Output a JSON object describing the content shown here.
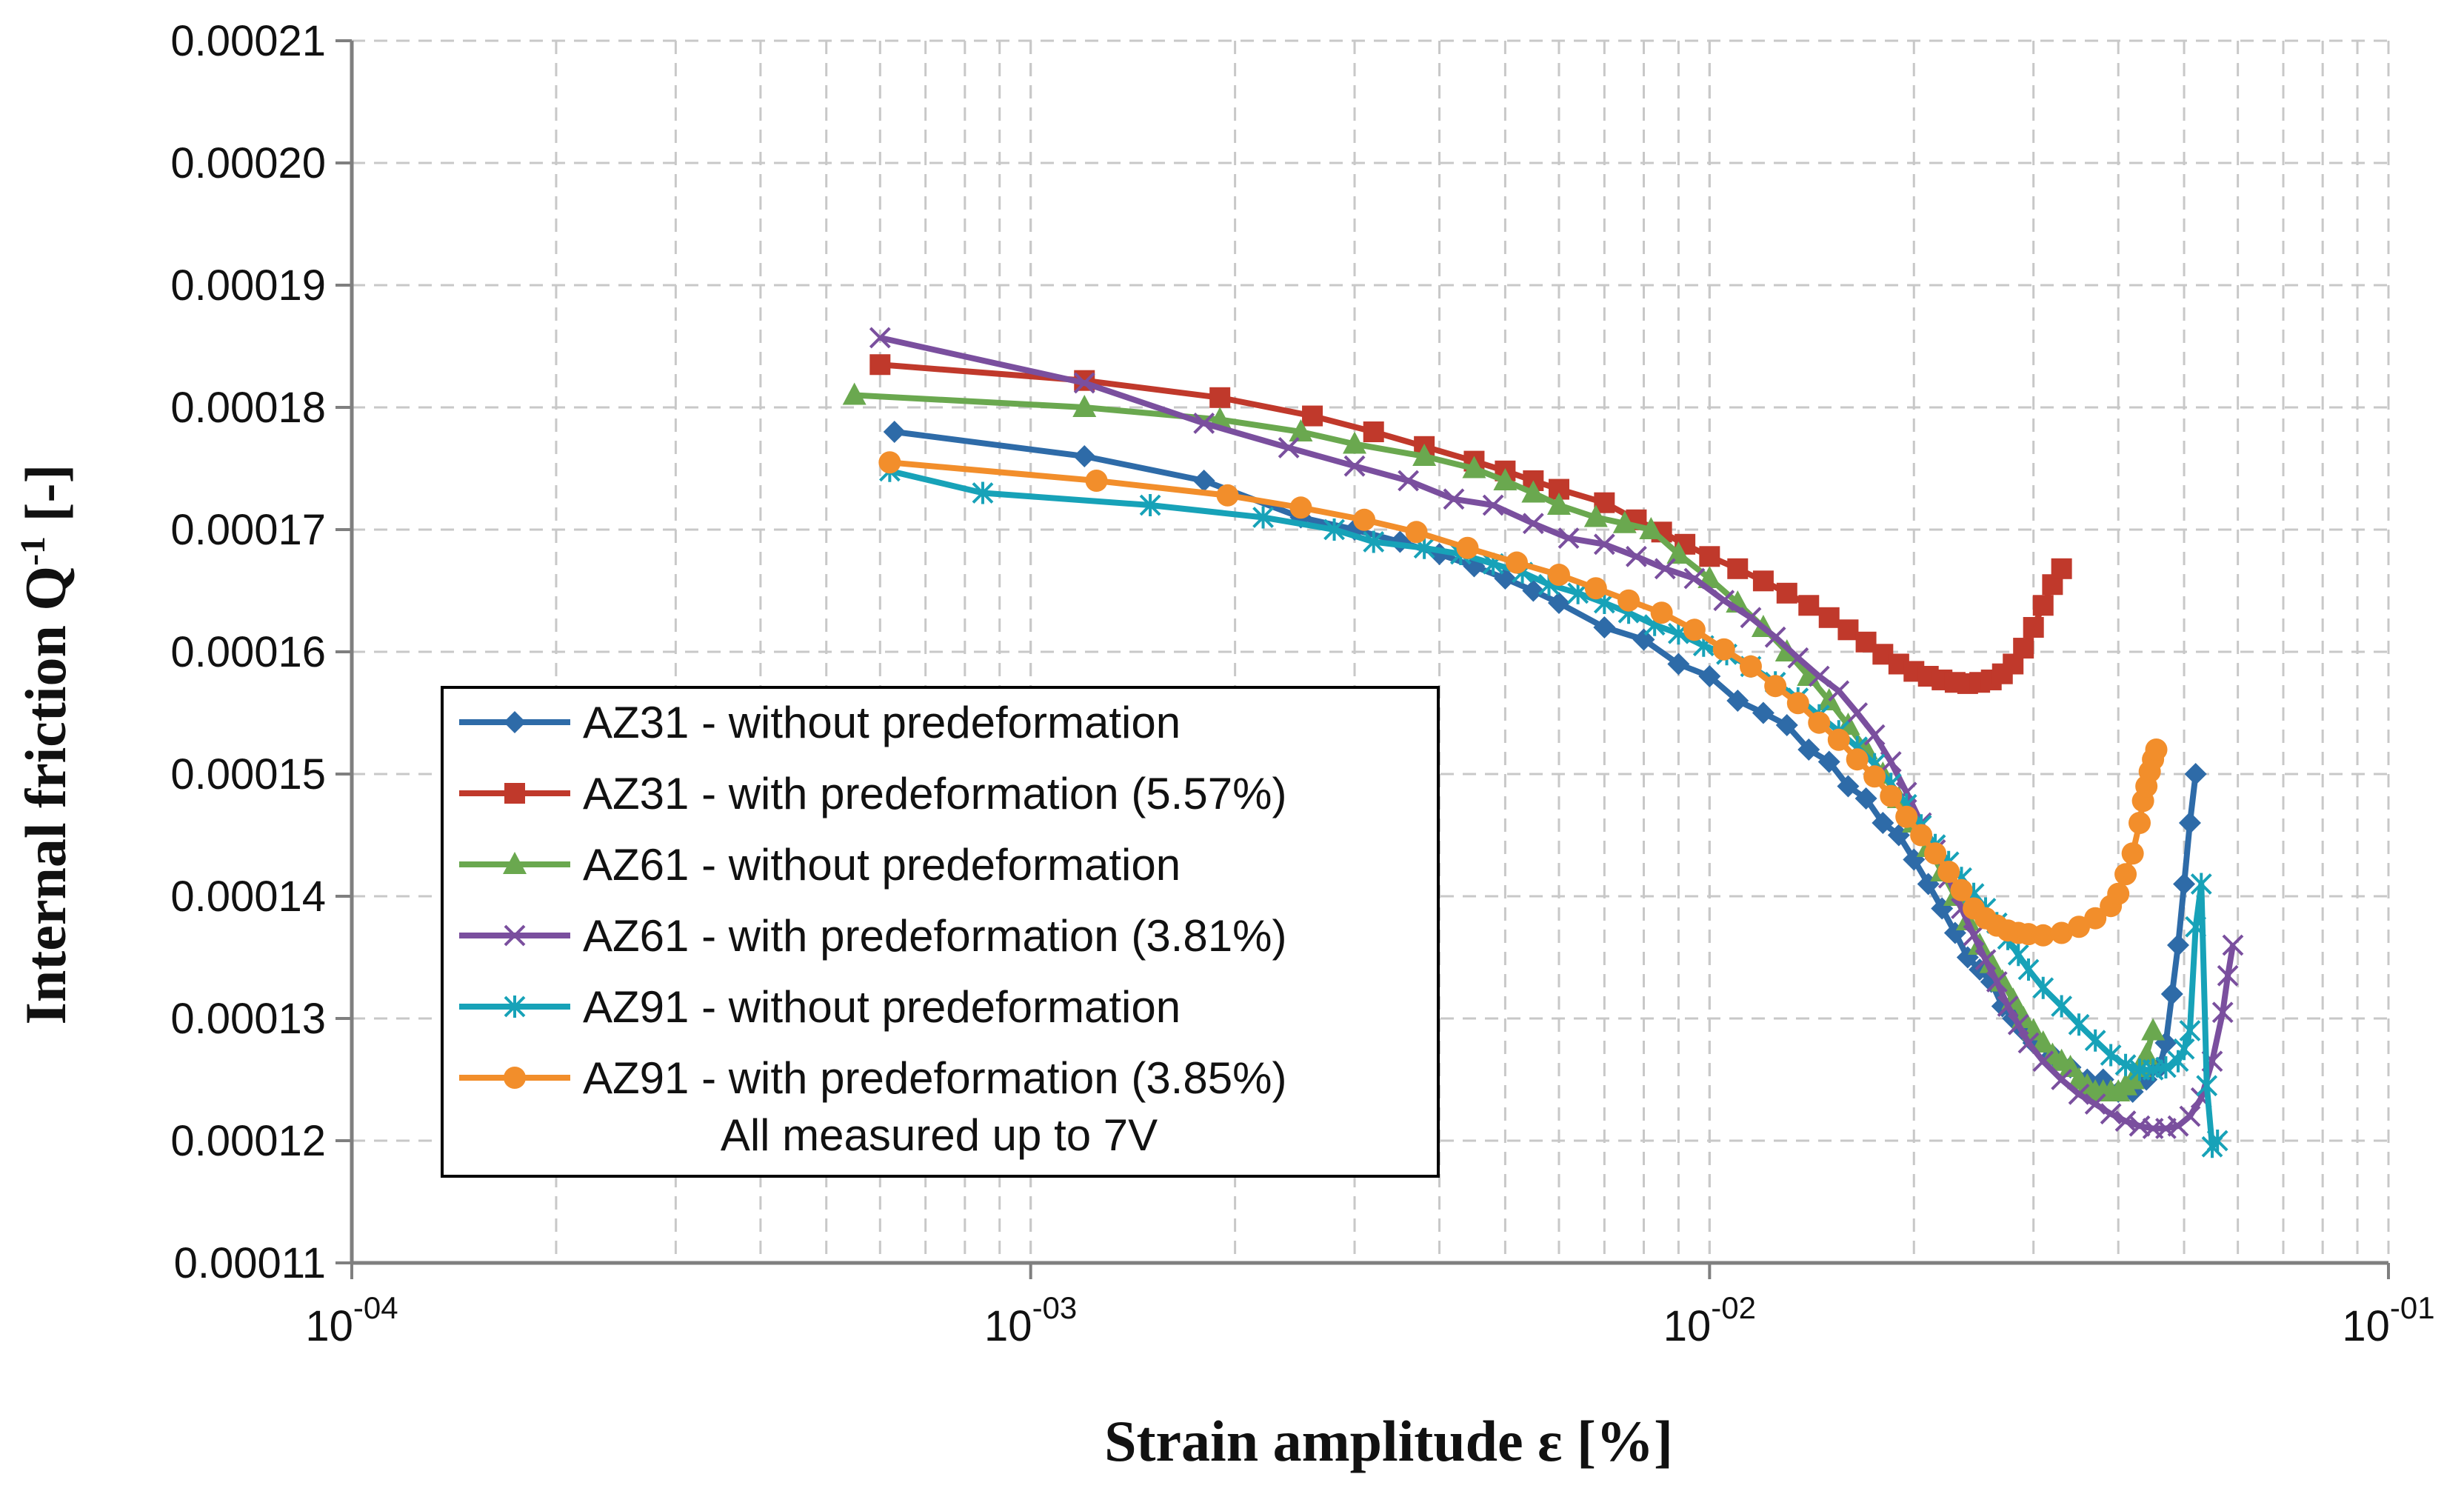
{
  "chart_data": {
    "type": "line",
    "title": "",
    "xlabel": "Strain amplitude ε [%]",
    "ylabel": "Internal friction Q",
    "ylabel_sup": "-1",
    "ylabel_unit": "[-]",
    "xscale": "log",
    "xlim": [
      0.0001,
      0.1
    ],
    "ylim": [
      0.00011,
      0.00021
    ],
    "grid": true,
    "legend_position": "lower-left",
    "x_ticks": [
      {
        "mant": "10",
        "exp": "-04"
      },
      {
        "mant": "10",
        "exp": "-03"
      },
      {
        "mant": "10",
        "exp": "-02"
      },
      {
        "mant": "10",
        "exp": "-01"
      }
    ],
    "y_ticks": [
      "0.00011",
      "0.00012",
      "0.00013",
      "0.00014",
      "0.00015",
      "0.00016",
      "0.00017",
      "0.00018",
      "0.00019",
      "0.00020",
      "0.00021"
    ],
    "series": [
      {
        "name": "AZ31 - without predeformation",
        "color": "#2e6ba8",
        "marker": "diamond",
        "x": [
          0.00063,
          0.0012,
          0.0018,
          0.0025,
          0.003,
          0.0035,
          0.004,
          0.0045,
          0.005,
          0.0055,
          0.006,
          0.007,
          0.008,
          0.009,
          0.01,
          0.011,
          0.012,
          0.013,
          0.014,
          0.015,
          0.016,
          0.017,
          0.018,
          0.019,
          0.02,
          0.021,
          0.022,
          0.023,
          0.024,
          0.025,
          0.026,
          0.027,
          0.028,
          0.029,
          0.03,
          0.032,
          0.034,
          0.036,
          0.038,
          0.04,
          0.042,
          0.044,
          0.046,
          0.047,
          0.048,
          0.049,
          0.05,
          0.051,
          0.052
        ],
        "y": [
          0.000178,
          0.000176,
          0.000174,
          0.000171,
          0.00017,
          0.000169,
          0.000168,
          0.000167,
          0.000166,
          0.000165,
          0.000164,
          0.000162,
          0.000161,
          0.000159,
          0.000158,
          0.000156,
          0.000155,
          0.000154,
          0.000152,
          0.000151,
          0.000149,
          0.000148,
          0.000146,
          0.000145,
          0.000143,
          0.000141,
          0.000139,
          0.000137,
          0.000135,
          0.000134,
          0.000133,
          0.000131,
          0.00013,
          0.000129,
          0.000128,
          0.000127,
          0.000126,
          0.000125,
          0.000125,
          0.000124,
          0.000124,
          0.000125,
          0.000126,
          0.000128,
          0.000132,
          0.000136,
          0.000141,
          0.000146,
          0.00015
        ]
      },
      {
        "name": "AZ31 - with predeformation (5.57%)",
        "color": "#c0392b",
        "marker": "square",
        "x": [
          0.0006,
          0.0012,
          0.0019,
          0.0026,
          0.0032,
          0.0038,
          0.0045,
          0.005,
          0.0055,
          0.006,
          0.007,
          0.0078,
          0.0085,
          0.0092,
          0.01,
          0.011,
          0.012,
          0.013,
          0.014,
          0.015,
          0.016,
          0.017,
          0.018,
          0.019,
          0.02,
          0.021,
          0.022,
          0.023,
          0.024,
          0.025,
          0.026,
          0.027,
          0.028,
          0.029,
          0.03,
          0.031,
          0.032,
          0.033
        ],
        "y": [
          0.0001835,
          0.0001822,
          0.0001808,
          0.0001793,
          0.000178,
          0.0001768,
          0.0001756,
          0.0001748,
          0.000174,
          0.0001733,
          0.0001722,
          0.0001708,
          0.0001698,
          0.0001688,
          0.0001678,
          0.0001668,
          0.0001658,
          0.0001648,
          0.0001638,
          0.0001628,
          0.0001618,
          0.0001608,
          0.0001598,
          0.000159,
          0.0001584,
          0.000158,
          0.0001577,
          0.0001575,
          0.0001574,
          0.0001575,
          0.0001577,
          0.0001582,
          0.000159,
          0.0001603,
          0.000162,
          0.0001638,
          0.0001655,
          0.0001668
        ]
      },
      {
        "name": "AZ61 - without predeformation",
        "color": "#6aa84f",
        "marker": "triangle",
        "x": [
          0.00055,
          0.0012,
          0.0019,
          0.0025,
          0.003,
          0.0038,
          0.0045,
          0.005,
          0.0055,
          0.006,
          0.0068,
          0.0075,
          0.0082,
          0.009,
          0.01,
          0.011,
          0.012,
          0.013,
          0.014,
          0.015,
          0.016,
          0.017,
          0.018,
          0.019,
          0.02,
          0.021,
          0.022,
          0.023,
          0.024,
          0.025,
          0.026,
          0.027,
          0.028,
          0.029,
          0.03,
          0.031,
          0.032,
          0.033,
          0.034,
          0.035,
          0.036,
          0.037,
          0.038,
          0.039,
          0.04,
          0.041,
          0.042,
          0.043,
          0.044,
          0.045
        ],
        "y": [
          0.000181,
          0.00018,
          0.000179,
          0.000178,
          0.000177,
          0.000176,
          0.000175,
          0.000174,
          0.000173,
          0.000172,
          0.000171,
          0.0001705,
          0.00017,
          0.000168,
          0.000166,
          0.000164,
          0.000162,
          0.00016,
          0.000158,
          0.000156,
          0.000154,
          0.000152,
          0.00015,
          0.000148,
          0.000146,
          0.000144,
          0.000142,
          0.00014,
          0.000138,
          0.000136,
          0.0001345,
          0.000133,
          0.0001315,
          0.00013,
          0.000129,
          0.000128,
          0.000127,
          0.0001265,
          0.000126,
          0.000125,
          0.0001245,
          0.000124,
          0.000124,
          0.000124,
          0.000124,
          0.0001245,
          0.000125,
          0.000126,
          0.000127,
          0.000129
        ]
      },
      {
        "name": "AZ61 - with predeformation (3.81%)",
        "color": "#7a4f9e",
        "marker": "x",
        "x": [
          0.0006,
          0.0012,
          0.0018,
          0.0024,
          0.003,
          0.0036,
          0.0042,
          0.0048,
          0.0055,
          0.0062,
          0.007,
          0.0078,
          0.0086,
          0.0095,
          0.0105,
          0.0115,
          0.0125,
          0.0135,
          0.0145,
          0.0155,
          0.0165,
          0.0175,
          0.0185,
          0.0195,
          0.0205,
          0.0215,
          0.0225,
          0.0235,
          0.0245,
          0.0255,
          0.0265,
          0.0275,
          0.0285,
          0.0295,
          0.031,
          0.033,
          0.035,
          0.037,
          0.039,
          0.041,
          0.043,
          0.045,
          0.047,
          0.049,
          0.051,
          0.053,
          0.055,
          0.057,
          0.058,
          0.059
        ],
        "y": [
          0.0001857,
          0.000182,
          0.0001787,
          0.0001767,
          0.0001752,
          0.000174,
          0.0001725,
          0.000172,
          0.0001705,
          0.0001693,
          0.0001688,
          0.0001678,
          0.0001668,
          0.000166,
          0.0001642,
          0.0001628,
          0.0001612,
          0.0001595,
          0.000158,
          0.0001568,
          0.000155,
          0.0001532,
          0.000151,
          0.0001485,
          0.000146,
          0.0001438,
          0.0001415,
          0.000139,
          0.0001368,
          0.0001348,
          0.000133,
          0.000131,
          0.0001295,
          0.000128,
          0.0001265,
          0.000125,
          0.0001238,
          0.000123,
          0.0001222,
          0.0001216,
          0.0001212,
          0.000121,
          0.000121,
          0.0001212,
          0.000122,
          0.0001235,
          0.0001265,
          0.0001305,
          0.0001335,
          0.000136
        ]
      },
      {
        "name": "AZ91 - without predeformation",
        "color": "#17a2b8",
        "marker": "asterisk",
        "x": [
          0.00062,
          0.00085,
          0.0015,
          0.0022,
          0.0028,
          0.0032,
          0.0038,
          0.0043,
          0.0048,
          0.0053,
          0.0058,
          0.0064,
          0.007,
          0.0076,
          0.0083,
          0.009,
          0.0098,
          0.0106,
          0.0115,
          0.0125,
          0.0135,
          0.0145,
          0.0155,
          0.0165,
          0.0175,
          0.0185,
          0.0195,
          0.0205,
          0.0215,
          0.0225,
          0.0235,
          0.0245,
          0.0255,
          0.0265,
          0.0275,
          0.0285,
          0.0295,
          0.031,
          0.033,
          0.035,
          0.037,
          0.039,
          0.041,
          0.043,
          0.045,
          0.047,
          0.049,
          0.05,
          0.051,
          0.052,
          0.053,
          0.054,
          0.055,
          0.056
        ],
        "y": [
          0.0001748,
          0.000173,
          0.000172,
          0.000171,
          0.00017,
          0.000169,
          0.0001685,
          0.000168,
          0.0001672,
          0.0001665,
          0.0001655,
          0.0001648,
          0.000164,
          0.0001632,
          0.0001622,
          0.0001615,
          0.0001605,
          0.0001598,
          0.0001588,
          0.0001575,
          0.0001562,
          0.0001548,
          0.0001535,
          0.0001522,
          0.0001508,
          0.0001492,
          0.0001475,
          0.0001458,
          0.0001442,
          0.0001428,
          0.0001415,
          0.0001402,
          0.000139,
          0.0001378,
          0.0001365,
          0.0001352,
          0.000134,
          0.0001325,
          0.000131,
          0.0001295,
          0.0001282,
          0.000127,
          0.0001262,
          0.0001258,
          0.0001258,
          0.000126,
          0.0001265,
          0.0001275,
          0.000129,
          0.0001375,
          0.000141,
          0.0001245,
          0.0001195,
          0.00012
        ]
      },
      {
        "name": "AZ91 - with predeformation (3.85%)",
        "color": "#f28e2b",
        "marker": "circle",
        "x": [
          0.00062,
          0.00125,
          0.00195,
          0.0025,
          0.0031,
          0.0037,
          0.0044,
          0.0052,
          0.006,
          0.0068,
          0.0076,
          0.0085,
          0.0095,
          0.0105,
          0.0115,
          0.0125,
          0.0135,
          0.0145,
          0.0155,
          0.0165,
          0.0175,
          0.0185,
          0.0195,
          0.0205,
          0.0215,
          0.0225,
          0.0235,
          0.0245,
          0.0255,
          0.0265,
          0.0275,
          0.0285,
          0.0295,
          0.031,
          0.033,
          0.035,
          0.037,
          0.039,
          0.04,
          0.041,
          0.042,
          0.043,
          0.0435,
          0.044,
          0.0445,
          0.045,
          0.0455
        ],
        "y": [
          0.0001755,
          0.000174,
          0.0001728,
          0.0001718,
          0.0001708,
          0.0001698,
          0.0001685,
          0.0001673,
          0.0001663,
          0.0001652,
          0.0001642,
          0.0001632,
          0.0001618,
          0.0001602,
          0.0001588,
          0.0001572,
          0.0001558,
          0.0001542,
          0.0001528,
          0.0001512,
          0.0001498,
          0.0001482,
          0.0001465,
          0.000145,
          0.0001435,
          0.000142,
          0.0001405,
          0.000139,
          0.0001382,
          0.0001376,
          0.0001372,
          0.000137,
          0.0001369,
          0.0001368,
          0.000137,
          0.0001375,
          0.0001382,
          0.0001392,
          0.0001402,
          0.0001418,
          0.0001435,
          0.000146,
          0.0001478,
          0.000149,
          0.0001502,
          0.0001512,
          0.000152
        ]
      }
    ],
    "legend_note": "All measured up to 7V"
  }
}
